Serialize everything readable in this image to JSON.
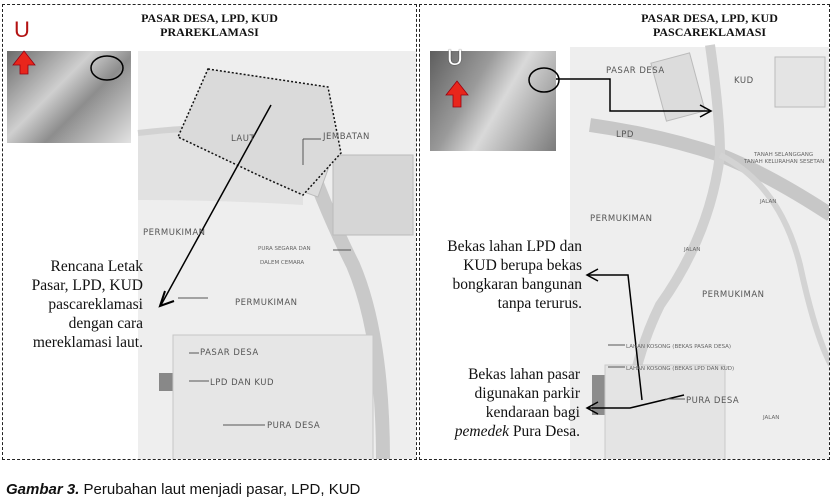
{
  "left": {
    "title_line1": "PASAR DESA, LPD, KUD",
    "title_line2": "PRAREKLAMASI",
    "compass": "U",
    "map_labels": {
      "laut": "LAUT",
      "jembatan": "JEMBATAN",
      "permukiman_1": "PERMUKIMAN",
      "permukiman_2": "PERMUKIMAN",
      "pura_segara_1": "PURA SEGARA DAN",
      "pura_segara_2": "DALEM CEMARA",
      "pasar_desa": "PASAR DESA",
      "lpd_kud": "LPD DAN KUD",
      "pura_desa": "PURA DESA"
    },
    "note_lines": [
      "Rencana Letak",
      "Pasar, LPD, KUD",
      "pascareklamasi",
      "dengan cara",
      "mereklamasi laut."
    ]
  },
  "right": {
    "title_line1": "PASAR DESA, LPD, KUD",
    "title_line2": "PASCAREKLAMASI",
    "compass": "U",
    "map_labels": {
      "pasar_desa": "PASAR DESA",
      "kud": "KUD",
      "lpd": "LPD",
      "small_1": "TANAH SELANGGANG",
      "small_2": "TANAH KELURAHAN SESETAN",
      "jalan_1": "JALAN",
      "jalan_2": "JALAN",
      "jalan_3": "JALAN",
      "permukiman_1": "PERMUKIMAN",
      "permukiman_2": "PERMUKIMAN",
      "lahan_1": "LAHAN KOSONG (BEKAS PASAR DESA)",
      "lahan_2": "LAHAN KOSONG (BEKAS LPD DAN KUD)",
      "pura_desa": "PURA DESA"
    },
    "note1_lines": [
      "Bekas lahan LPD dan",
      "KUD berupa bekas",
      "bongkaran bangunan",
      "tanpa terurus."
    ],
    "note2_lines": [
      "Bekas lahan pasar",
      "digunakan parkir",
      "kendaraan bagi"
    ],
    "note2_last_italic": "pemedek",
    "note2_last_rest": " Pura Desa."
  },
  "caption": {
    "label": "Gambar 3.",
    "text": " Perubahan laut menjadi pasar, LPD, KUD"
  },
  "colors": {
    "arrow_red": "#e8261c",
    "map_fill": "#e9e9e9",
    "road": "#c8c8c8",
    "block": "#cfcfcf"
  }
}
